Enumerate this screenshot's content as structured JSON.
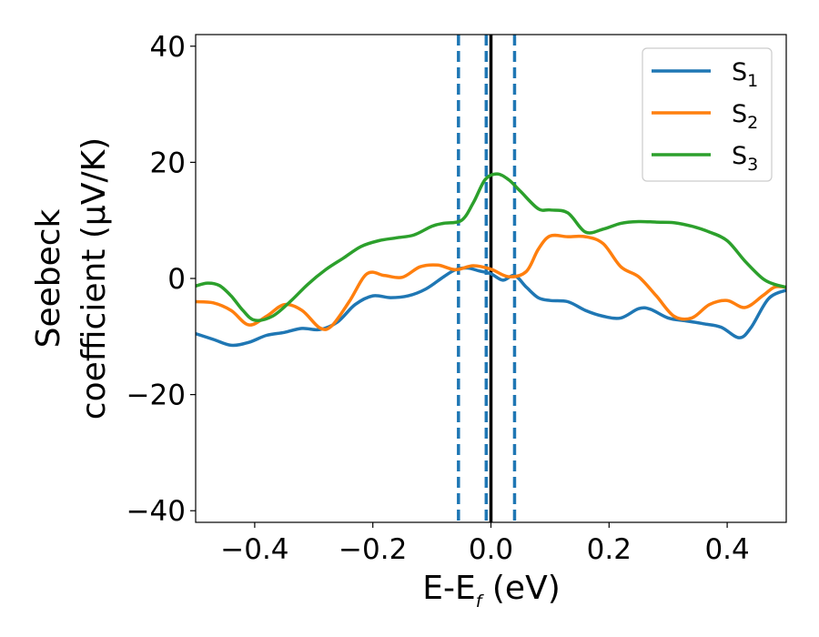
{
  "chart_data": {
    "type": "line",
    "title": "",
    "xlabel": "E-E",
    "xlabel_sub": "f",
    "xlabel_suffix": " (eV)",
    "ylabel_line1": "Seebeck",
    "ylabel_line2": "coefficient  (μV/K)",
    "xlim": [
      -0.5,
      0.5
    ],
    "ylim": [
      -42,
      42
    ],
    "xticks": [
      -0.4,
      -0.2,
      0.0,
      0.2,
      0.4
    ],
    "xtick_labels": [
      "−0.4",
      "−0.2",
      "0.0",
      "0.2",
      "0.4"
    ],
    "yticks": [
      -40,
      -20,
      0,
      20,
      40
    ],
    "ytick_labels": [
      "−40",
      "−20",
      "0",
      "20",
      "40"
    ],
    "grid": false,
    "legend_position": "top-right",
    "vlines": [
      {
        "x": -0.055,
        "style": "dashed",
        "color": "#1f77b4"
      },
      {
        "x": -0.008,
        "style": "dashed",
        "color": "#1f77b4"
      },
      {
        "x": 0.04,
        "style": "dashed",
        "color": "#1f77b4"
      },
      {
        "x": 0.0,
        "style": "solid",
        "color": "#000000"
      }
    ],
    "series": [
      {
        "name": "S",
        "sub": "1",
        "color": "#1f77b4",
        "x": [
          -0.5,
          -0.47,
          -0.44,
          -0.41,
          -0.38,
          -0.35,
          -0.32,
          -0.29,
          -0.26,
          -0.23,
          -0.2,
          -0.17,
          -0.14,
          -0.11,
          -0.08,
          -0.06,
          -0.04,
          -0.02,
          0.0,
          0.02,
          0.04,
          0.06,
          0.08,
          0.1,
          0.13,
          0.16,
          0.19,
          0.22,
          0.25,
          0.27,
          0.3,
          0.33,
          0.36,
          0.39,
          0.42,
          0.44,
          0.47,
          0.5
        ],
        "y": [
          -9.5,
          -10.5,
          -11.5,
          -11,
          -9.8,
          -9.3,
          -8.6,
          -8.8,
          -7.5,
          -4.5,
          -3,
          -3.3,
          -3,
          -1.8,
          0.3,
          1.5,
          1.8,
          1.3,
          0.8,
          -0.3,
          0.5,
          -1.5,
          -3.3,
          -3.8,
          -4,
          -5.5,
          -6.5,
          -6.8,
          -5.2,
          -5.3,
          -6.8,
          -7.3,
          -7.8,
          -8.4,
          -10.2,
          -8.5,
          -3.5,
          -2
        ]
      },
      {
        "name": "S",
        "sub": "2",
        "color": "#ff7f0e",
        "x": [
          -0.5,
          -0.47,
          -0.44,
          -0.41,
          -0.38,
          -0.35,
          -0.32,
          -0.29,
          -0.27,
          -0.24,
          -0.21,
          -0.18,
          -0.15,
          -0.12,
          -0.09,
          -0.06,
          -0.03,
          0.0,
          0.03,
          0.06,
          0.08,
          0.1,
          0.13,
          0.16,
          0.19,
          0.22,
          0.25,
          0.28,
          0.31,
          0.34,
          0.37,
          0.4,
          0.43,
          0.46,
          0.48,
          0.5
        ],
        "y": [
          -4,
          -4.2,
          -5.5,
          -8,
          -6.5,
          -4.5,
          -5.5,
          -8.5,
          -8.2,
          -4,
          0.8,
          0.5,
          0.2,
          2,
          2.3,
          1.5,
          2.2,
          1.6,
          0.3,
          1.2,
          5,
          7.3,
          7.2,
          7.2,
          6,
          2,
          0.3,
          -3,
          -6.5,
          -6.8,
          -4.5,
          -3.8,
          -5,
          -3,
          -1.5,
          -1.5
        ]
      },
      {
        "name": "S",
        "sub": "3",
        "color": "#2ca02c",
        "x": [
          -0.5,
          -0.48,
          -0.46,
          -0.44,
          -0.42,
          -0.4,
          -0.37,
          -0.34,
          -0.31,
          -0.28,
          -0.25,
          -0.22,
          -0.19,
          -0.16,
          -0.13,
          -0.1,
          -0.08,
          -0.05,
          -0.03,
          -0.01,
          0.01,
          0.03,
          0.05,
          0.08,
          0.1,
          0.13,
          0.16,
          0.19,
          0.22,
          0.25,
          0.28,
          0.31,
          0.34,
          0.37,
          0.4,
          0.43,
          0.46,
          0.48,
          0.5
        ],
        "y": [
          -1.3,
          -0.8,
          -1.2,
          -3,
          -5.5,
          -7.2,
          -6.5,
          -4,
          -1,
          1.5,
          3.5,
          5.5,
          6.5,
          7,
          7.5,
          9,
          9.5,
          10,
          13,
          17,
          18,
          17,
          15,
          12,
          11.8,
          11.3,
          8,
          8.5,
          9.5,
          9.8,
          9.7,
          9.6,
          9,
          8,
          6.5,
          3,
          0,
          -1,
          -1.5
        ]
      }
    ]
  }
}
